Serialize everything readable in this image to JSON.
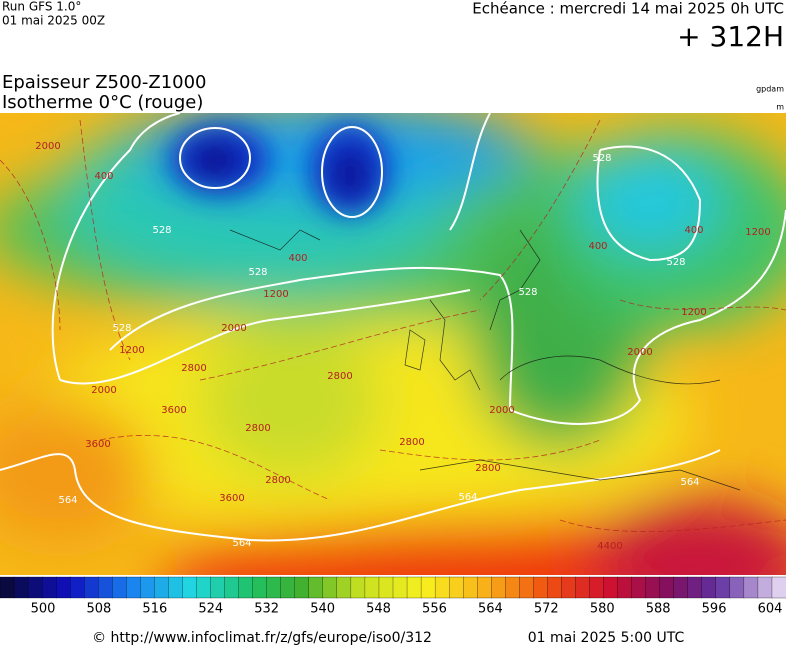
{
  "header": {
    "run": "Run GFS 1.0°",
    "run_date": "01 mai 2025 00Z",
    "echeance": "Echéance : mercredi 14 mai 2025 0h UTC",
    "hour": "+ 312H"
  },
  "titles": {
    "line1": "Epaisseur Z500-Z1000",
    "line2": "Isotherme 0°C (rouge)"
  },
  "units": {
    "thickness": "gpdam",
    "height": "m"
  },
  "contour_labels": [
    "528",
    "528",
    "528",
    "528",
    "528",
    "528",
    "564",
    "564",
    "564",
    "564",
    "1200",
    "1200",
    "1200",
    "1200",
    "2000",
    "2000",
    "2000",
    "2000",
    "2000",
    "2800",
    "2800",
    "2800",
    "2800",
    "2800",
    "2800",
    "3600",
    "3600",
    "3600",
    "400",
    "400",
    "400",
    "400",
    "4400"
  ],
  "colorbar": {
    "labels": [
      500,
      508,
      516,
      524,
      532,
      540,
      548,
      556,
      564,
      572,
      580,
      588,
      596,
      604
    ]
  },
  "footer": {
    "url": "© http://www.infoclimat.fr/z/gfs/europe/iso0/312",
    "timestamp": "01 mai 2025  5:00 UTC"
  }
}
